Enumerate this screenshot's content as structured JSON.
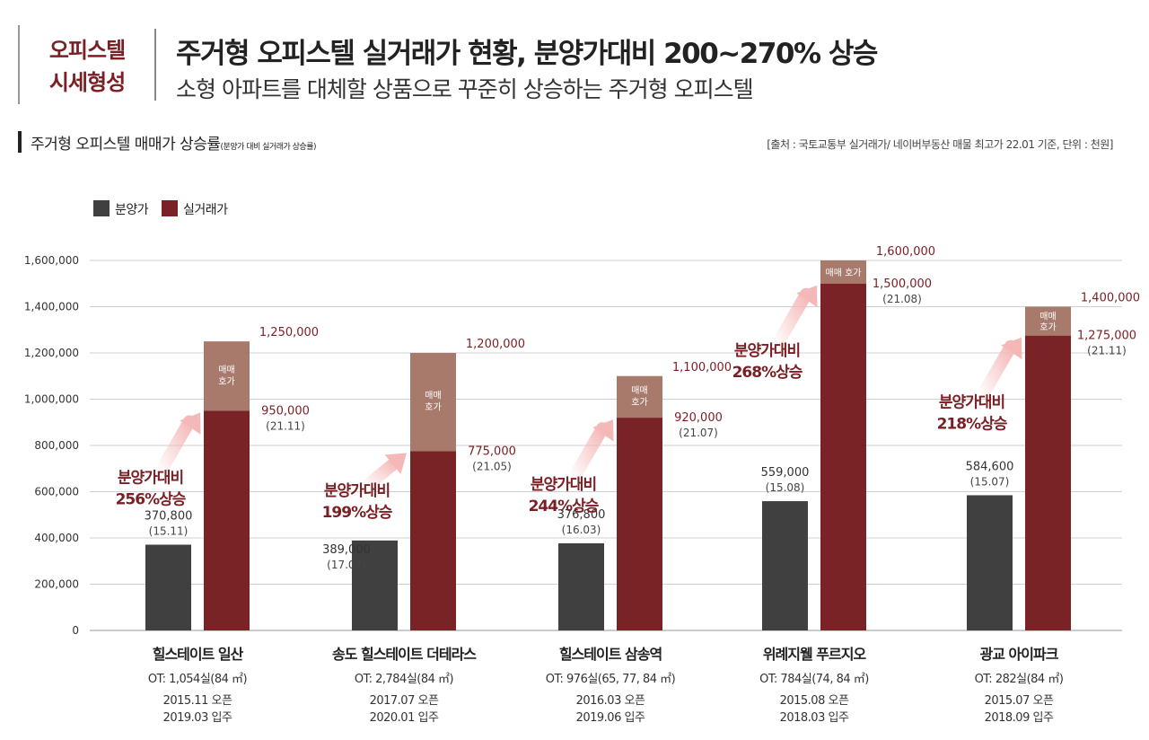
{
  "header": {
    "tag_line1": "오피스텔",
    "tag_line2": "시세형성",
    "title": "주거형 오피스텔 실거래가 현황, 분양가대비 200~270% 상승",
    "subtitle": "소형 아파트를 대체할 상품으로 꾸준히 상승하는 주거형 오피스텔"
  },
  "section": {
    "title": "주거형 오피스텔 매매가 상승률",
    "note": "(분양가 대비 실거래가 상승률)",
    "source": "[출처 : 국토교통부 실거래가/ 네이버부동산 매물 최고가 22.01 기준, 단위 : 천원]"
  },
  "colors": {
    "presale": "#404040",
    "actual": "#7a2327",
    "asking": "#a77a6c",
    "accent": "#7a1f24",
    "arrow": "#f4b8b8"
  },
  "chart_data": {
    "type": "bar",
    "unit": "천원",
    "ylim": [
      0,
      1600000
    ],
    "yticks": [
      0,
      200000,
      400000,
      600000,
      800000,
      1000000,
      1200000,
      1400000,
      1600000
    ],
    "ytick_labels": [
      "0",
      "200,000",
      "400,000",
      "600,000",
      "800,000",
      "1,000,000",
      "1,200,000",
      "1,400,000",
      "1,600,000"
    ],
    "grid": true,
    "legend_placement": "top-left",
    "legend": [
      "분양가",
      "실거래가"
    ],
    "asking_label": "매매 호가",
    "categories": [
      "힐스테이트 일산",
      "송도 힐스테이트 더테라스",
      "힐스테이트 삼송역",
      "위례지웰 푸르지오",
      "광교 아이파크"
    ],
    "series": [
      {
        "name": "분양가",
        "values": [
          370800,
          389000,
          376800,
          559000,
          584600
        ],
        "labels": [
          "370,800",
          "389,000",
          "376,800",
          "559,000",
          "584,600"
        ],
        "dates": [
          "(15.11)",
          "(17.07)",
          "(16.03)",
          "(15.08)",
          "(15.07)"
        ]
      },
      {
        "name": "실거래가",
        "values": [
          950000,
          775000,
          920000,
          1500000,
          1275000
        ],
        "labels": [
          "950,000",
          "775,000",
          "920,000",
          "1,500,000",
          "1,275,000"
        ],
        "dates": [
          "(21.11)",
          "(21.05)",
          "(21.07)",
          "(21.08)",
          "(21.11)"
        ]
      },
      {
        "name": "매매 호가",
        "values": [
          1250000,
          1200000,
          1100000,
          1600000,
          1400000
        ],
        "labels": [
          "1,250,000",
          "1,200,000",
          "1,100,000",
          "1,600,000",
          "1,400,000"
        ]
      }
    ],
    "rise_annotations": [
      {
        "line1": "분양가대비",
        "line2": "256%상승"
      },
      {
        "line1": "분양가대비",
        "line2": "199%상승"
      },
      {
        "line1": "분양가대비",
        "line2": "244%상승"
      },
      {
        "line1": "분양가대비",
        "line2": "268%상승"
      },
      {
        "line1": "분양가대비",
        "line2": "218%상승"
      }
    ],
    "category_info": [
      {
        "units": "OT: 1,054실(84 ㎡)",
        "open": "2015.11 오픈",
        "move_in": "2019.03 입주"
      },
      {
        "units": "OT: 2,784실(84 ㎡)",
        "open": "2017.07 오픈",
        "move_in": "2020.01 입주"
      },
      {
        "units": "OT: 976실(65, 77, 84 ㎡)",
        "open": "2016.03 오픈",
        "move_in": "2019.06 입주"
      },
      {
        "units": "OT: 784실(74, 84 ㎡)",
        "open": "2015.08 오픈",
        "move_in": "2018.03 입주"
      },
      {
        "units": "OT: 282실(84 ㎡)",
        "open": "2015.07 오픈",
        "move_in": "2018.09 입주"
      }
    ]
  }
}
